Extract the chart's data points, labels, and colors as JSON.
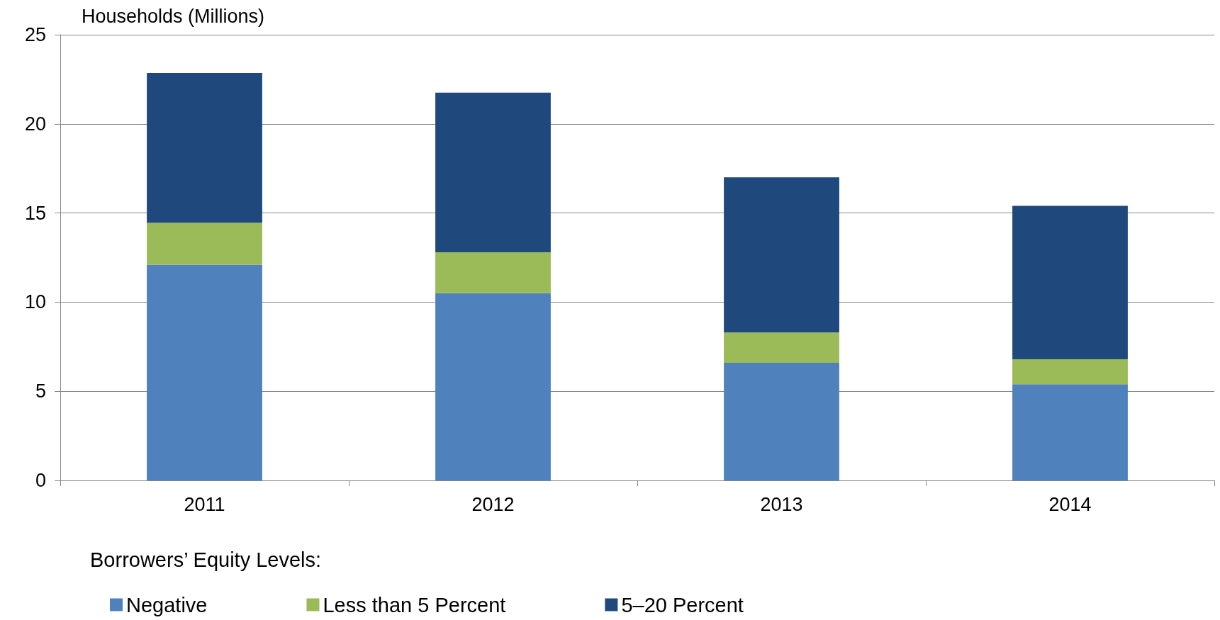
{
  "chart_data": {
    "type": "bar",
    "ylabel": "Households (Millions)",
    "legend_title": "Borrowers’ Equity Levels:",
    "categories": [
      "2011",
      "2012",
      "2013",
      "2014"
    ],
    "stacked": true,
    "series": [
      {
        "name": "Negative",
        "color": "#4f81bd",
        "values": [
          12.1,
          10.5,
          6.6,
          5.4
        ]
      },
      {
        "name": "Less than 5 Percent",
        "color": "#9bbb59",
        "values": [
          2.35,
          2.3,
          1.7,
          1.4
        ]
      },
      {
        "name": "5–20 Percent",
        "color": "#1f497d",
        "values": [
          8.4,
          8.95,
          8.7,
          8.6
        ]
      }
    ],
    "ylim": [
      0,
      25
    ],
    "yticks": [
      0,
      5,
      10,
      15,
      20,
      25
    ],
    "grid": "y",
    "legend": "bottom"
  }
}
